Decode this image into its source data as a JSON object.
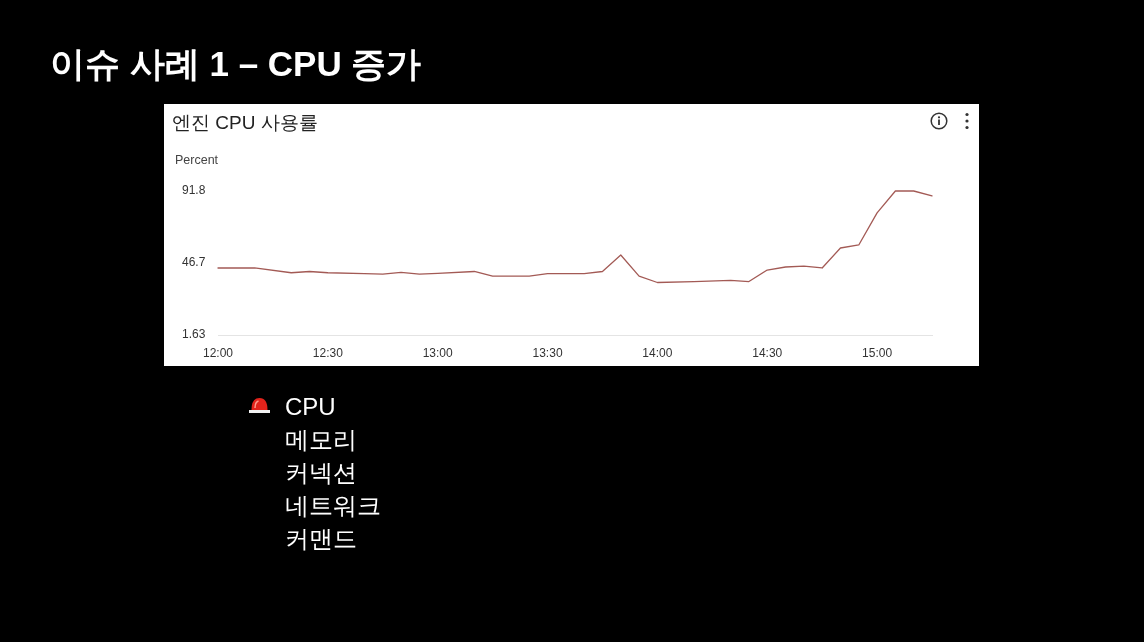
{
  "chart_data": {
    "type": "line",
    "title": "이슈 사례 1 – CPU 증가",
    "subtitle": "엔진 CPU 사용률",
    "ylabel": "Percent",
    "x": [
      12,
      12.1667,
      12.3333,
      12.4167,
      12.5,
      12.6667,
      12.75,
      12.8333,
      12.9167,
      13,
      13.1667,
      13.25,
      13.4167,
      13.5,
      13.6667,
      13.75,
      13.8333,
      13.9167,
      14,
      14.1667,
      14.3333,
      14.4167,
      14.5,
      14.5833,
      14.6667,
      14.75,
      14.8333,
      14.9167,
      15,
      15.0833,
      15.1667,
      15.25
    ],
    "values": [
      43.6,
      43.6,
      40.6,
      41.4,
      40.6,
      40.0,
      39.8,
      40.8,
      39.8,
      40.2,
      41.4,
      38.5,
      38.5,
      40.0,
      40.0,
      41.4,
      51.7,
      38.5,
      34.5,
      35.0,
      35.8,
      35.1,
      42.3,
      44.2,
      44.8,
      43.6,
      56.1,
      58.0,
      78.1,
      91.8,
      91.8,
      88.8
    ],
    "color": "#a35a55",
    "xlim": [
      12,
      15.25
    ],
    "xticks": [
      {
        "value": 12,
        "label": "12:00"
      },
      {
        "value": 12.5,
        "label": "12:30"
      },
      {
        "value": 13,
        "label": "13:00"
      },
      {
        "value": 13.5,
        "label": "13:30"
      },
      {
        "value": 14,
        "label": "14:00"
      },
      {
        "value": 14.5,
        "label": "14:30"
      },
      {
        "value": 15,
        "label": "15:00"
      }
    ],
    "ylim": [
      1.63,
      91.8
    ],
    "yticks": [
      1.63,
      46.7,
      91.8
    ],
    "annotations": [
      "CPU",
      "메모리",
      "커넥션",
      "네트워크",
      "커맨드"
    ]
  }
}
